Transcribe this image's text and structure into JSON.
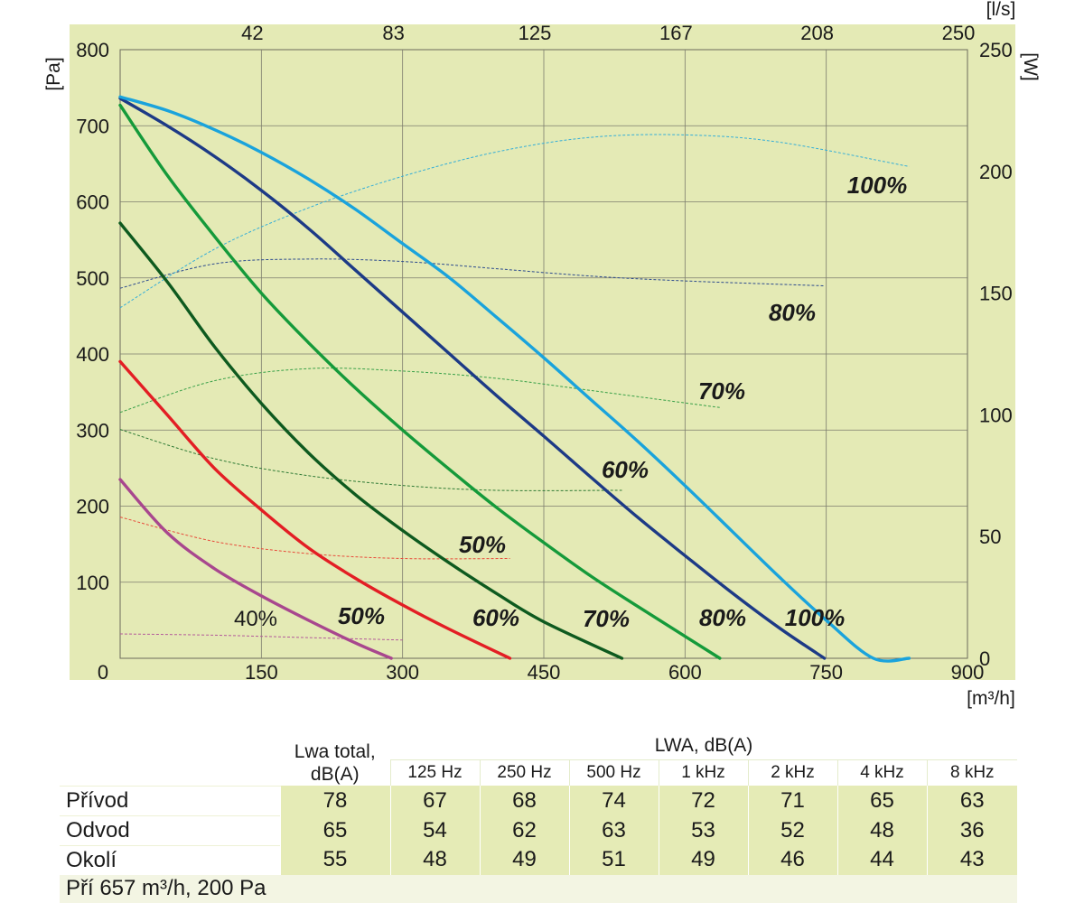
{
  "chart_data": {
    "type": "line",
    "x_axis": {
      "unit": "[m³/h]",
      "ticks": [
        "0",
        "150",
        "300",
        "450",
        "600",
        "750",
        "900"
      ],
      "range": [
        0,
        900
      ]
    },
    "x_top_axis": {
      "unit": "[l/s]",
      "ticks": [
        "42",
        "83",
        "125",
        "167",
        "208",
        "250"
      ]
    },
    "y_axis": {
      "unit": "[Pa]",
      "ticks": [
        "100",
        "200",
        "300",
        "400",
        "500",
        "600",
        "700",
        "800"
      ],
      "range": [
        0,
        800
      ]
    },
    "y_right_axis": {
      "unit": "[W]",
      "ticks": [
        "0",
        "50",
        "100",
        "150",
        "200",
        "250"
      ],
      "range": [
        0,
        250
      ]
    },
    "grid": true,
    "pressure_series": [
      {
        "name": "40%",
        "color": "#a8478e",
        "x": [
          0,
          50,
          100,
          150,
          200,
          250,
          288
        ],
        "y": [
          235,
          165,
          118,
          82,
          50,
          20,
          0
        ]
      },
      {
        "name": "50%",
        "color": "#e31e24",
        "x": [
          0,
          50,
          100,
          150,
          200,
          250,
          300,
          350,
          414
        ],
        "y": [
          390,
          320,
          250,
          195,
          145,
          105,
          70,
          38,
          0
        ]
      },
      {
        "name": "60%",
        "color": "#0e5a1f",
        "x": [
          0,
          50,
          100,
          150,
          200,
          250,
          300,
          350,
          400,
          450,
          533
        ],
        "y": [
          572,
          495,
          410,
          335,
          270,
          215,
          168,
          125,
          85,
          48,
          0
        ]
      },
      {
        "name": "70%",
        "color": "#159a3a",
        "x": [
          0,
          50,
          100,
          150,
          200,
          250,
          300,
          350,
          400,
          450,
          500,
          550,
          637
        ],
        "y": [
          727,
          635,
          555,
          480,
          415,
          355,
          300,
          248,
          198,
          152,
          108,
          68,
          0
        ]
      },
      {
        "name": "80%",
        "color": "#1d3a86",
        "x": [
          0,
          50,
          100,
          150,
          200,
          250,
          300,
          350,
          400,
          450,
          500,
          550,
          600,
          650,
          700,
          748
        ],
        "y": [
          736,
          700,
          660,
          615,
          565,
          510,
          455,
          400,
          345,
          292,
          238,
          185,
          135,
          86,
          40,
          0
        ]
      },
      {
        "name": "100%",
        "color": "#1aa3dc",
        "x": [
          0,
          50,
          100,
          150,
          200,
          250,
          300,
          350,
          400,
          450,
          500,
          550,
          600,
          650,
          700,
          750,
          800,
          838
        ],
        "y": [
          738,
          720,
          695,
          665,
          630,
          590,
          545,
          500,
          448,
          395,
          340,
          285,
          227,
          167,
          107,
          50,
          0,
          0
        ]
      }
    ],
    "power_series": [
      {
        "name": "40%",
        "color": "#b35a9a",
        "x": [
          0,
          100,
          200,
          300
        ],
        "w": [
          10,
          9.5,
          8.5,
          7.5
        ]
      },
      {
        "name": "50%",
        "color": "#e84a3a",
        "x": [
          0,
          100,
          200,
          300,
          414
        ],
        "w": [
          58,
          48,
          43,
          41,
          41
        ]
      },
      {
        "name": "60%",
        "color": "#2f7a35",
        "x": [
          0,
          100,
          200,
          300,
          400,
          533
        ],
        "w": [
          94,
          82,
          75,
          71,
          69,
          69
        ]
      },
      {
        "name": "70%",
        "color": "#38a048",
        "x": [
          0,
          100,
          200,
          300,
          400,
          500,
          637
        ],
        "w": [
          101,
          114,
          119,
          118,
          115,
          110,
          103
        ]
      },
      {
        "name": "80%",
        "color": "#2c4a8e",
        "x": [
          0,
          100,
          200,
          300,
          400,
          500,
          600,
          748
        ],
        "w": [
          152,
          162,
          164,
          163,
          160,
          157,
          155,
          153
        ]
      },
      {
        "name": "100%",
        "color": "#34aed8",
        "x": [
          0,
          100,
          200,
          300,
          400,
          500,
          600,
          700,
          838
        ],
        "w": [
          144,
          168,
          185,
          198,
          208,
          214,
          215,
          212,
          202
        ]
      }
    ],
    "curve_labels_bottom": [
      {
        "text": "40%",
        "x": 245,
        "y": 50,
        "style": "normal"
      },
      {
        "text": "50%",
        "x": 385,
        "y": 52,
        "style": "bold"
      },
      {
        "text": "60%",
        "x": 558,
        "y": 50,
        "style": "bold"
      },
      {
        "text": "70%",
        "x": 688,
        "y": 50,
        "style": "bold"
      },
      {
        "text": "80%",
        "x": 817,
        "y": 50,
        "style": "bold"
      },
      {
        "text": "100%",
        "x": 947,
        "y": 50,
        "style": "bold"
      }
    ],
    "curve_labels_power": [
      {
        "text": "50%",
        "x": 552,
        "y": 141
      },
      {
        "text": "60%",
        "x": 740,
        "y": 245
      },
      {
        "text": "70%",
        "x": 859,
        "y": 348
      },
      {
        "text": "80%",
        "x": 935,
        "y": 451
      },
      {
        "text": "100%",
        "x": 1031,
        "y": 619
      }
    ]
  },
  "table": {
    "col_header_total": [
      "Lwa total,",
      "dB(A)"
    ],
    "col_header_group": "LWA, dB(A)",
    "freq_headers": [
      "125 Hz",
      "250 Hz",
      "500 Hz",
      "1 kHz",
      "2 kHz",
      "4 kHz",
      "8 kHz"
    ],
    "rows": [
      {
        "label": "Přívod",
        "values": [
          "78",
          "67",
          "68",
          "74",
          "72",
          "71",
          "65",
          "63"
        ]
      },
      {
        "label": "Odvod",
        "values": [
          "65",
          "54",
          "62",
          "63",
          "53",
          "52",
          "48",
          "36"
        ]
      },
      {
        "label": "Okolí",
        "values": [
          "55",
          "48",
          "49",
          "51",
          "49",
          "46",
          "44",
          "43"
        ]
      }
    ],
    "note": "Pří 657 m³/h, 200 Pa"
  }
}
